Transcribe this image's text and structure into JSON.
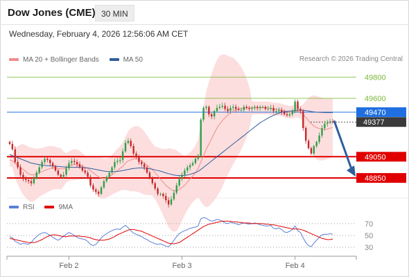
{
  "header": {
    "title": "Dow Jones (CME)",
    "interval": "30 MIN",
    "datetime": "Wednesday, February 4, 2026 12:56:06 AM CET"
  },
  "legend": {
    "items": [
      {
        "label": "MA 20 + Bollinger Bands",
        "color": "#f08c8c"
      },
      {
        "label": "MA 50",
        "color": "#2f5d9e"
      }
    ],
    "copyright": "Research © 2026 Trading Central"
  },
  "rsi_legend": {
    "items": [
      {
        "label": "RSI",
        "color": "#5b7fd6"
      },
      {
        "label": "9MA",
        "color": "#e00000"
      }
    ]
  },
  "colors": {
    "up": "#2e9e48",
    "down": "#c4282a",
    "support": "#e00000",
    "resistance": "#7cb83a",
    "current": "#3a3a3a",
    "pivot": "#1f6fe0",
    "band": "#fbd3d3",
    "ma20": "#f08c8c",
    "ma50": "#2f5d9e",
    "arrow": "#2f5d9e",
    "rsi": "#5b7fd6",
    "rsi_ma": "#e00000"
  },
  "chart_data": [
    {
      "type": "candlestick",
      "title": "Dow Jones (CME)",
      "ylim": [
        48680,
        49920
      ],
      "x_tick_labels": [
        "Feb 2",
        "Feb 3",
        "Feb 4"
      ],
      "levels": [
        {
          "value": 49800,
          "label": "49800",
          "role": "resistance"
        },
        {
          "value": 49600,
          "label": "49600",
          "role": "resistance"
        },
        {
          "value": 49470,
          "label": "49470",
          "role": "pivot"
        },
        {
          "value": 49377,
          "label": "49377",
          "role": "current"
        },
        {
          "value": 49050,
          "label": "49050",
          "role": "support"
        },
        {
          "value": 48850,
          "label": "48850",
          "role": "support"
        }
      ],
      "close_series": [
        49170,
        49120,
        49000,
        48950,
        48880,
        48840,
        48830,
        48820,
        48800,
        48850,
        48900,
        48950,
        49000,
        49030,
        49020,
        48990,
        48960,
        48920,
        48880,
        48860,
        48880,
        48940,
        48990,
        49010,
        49000,
        48980,
        48950,
        48920,
        48900,
        48860,
        48780,
        48740,
        48720,
        48700,
        48760,
        48820,
        48860,
        48900,
        48950,
        49000,
        49010,
        49020,
        49100,
        49180,
        49200,
        49150,
        49080,
        49050,
        49000,
        48980,
        48950,
        48900,
        48850,
        48800,
        48750,
        48700,
        48700,
        48680,
        48640,
        48600,
        48650,
        48710,
        48780,
        48840,
        48880,
        48920,
        48950,
        48970,
        48990,
        49030,
        49060,
        49400,
        49510,
        49520,
        49450,
        49430,
        49480,
        49510,
        49520,
        49530,
        49500,
        49480,
        49510,
        49520,
        49500,
        49490,
        49490,
        49520,
        49510,
        49500,
        49510,
        49520,
        49510,
        49520,
        49520,
        49500,
        49500,
        49510,
        49480,
        49480,
        49490,
        49470,
        49450,
        49440,
        49450,
        49480,
        49570,
        49500,
        49480,
        49320,
        49200,
        49130,
        49080,
        49150,
        49190,
        49250,
        49320,
        49360,
        49370,
        49380,
        49377
      ],
      "ma20_series": [
        49020,
        49010,
        48990,
        48970,
        48950,
        48930,
        48910,
        48890,
        48880,
        48880,
        48890,
        48900,
        48910,
        48920,
        48930,
        48940,
        48945,
        48945,
        48940,
        48935,
        48935,
        48945,
        48960,
        48970,
        48975,
        48975,
        48970,
        48960,
        48950,
        48940,
        48920,
        48900,
        48880,
        48860,
        48850,
        48845,
        48850,
        48860,
        48880,
        48900,
        48920,
        48940,
        48960,
        48990,
        49010,
        49020,
        49030,
        49030,
        49025,
        49010,
        48990,
        48970,
        48950,
        48930,
        48900,
        48870,
        48840,
        48810,
        48780,
        48760,
        48740,
        48730,
        48730,
        48740,
        48760,
        48780,
        48810,
        48840,
        48870,
        48900,
        48940,
        49000,
        49060,
        49120,
        49170,
        49220,
        49270,
        49320,
        49360,
        49390,
        49420,
        49440,
        49460,
        49480,
        49490,
        49500,
        49505,
        49510,
        49510,
        49510,
        49510,
        49510,
        49510,
        49510,
        49510,
        49510,
        49510,
        49505,
        49500,
        49500,
        49495,
        49490,
        49480,
        49475,
        49470,
        49470,
        49480,
        49480,
        49470,
        49450,
        49420,
        49390,
        49360,
        49340,
        49325,
        49315,
        49310,
        49310,
        49312,
        49318,
        49325
      ],
      "ma50_series": [
        49070,
        49060,
        49050,
        49040,
        49030,
        49020,
        49010,
        49000,
        48990,
        48985,
        48980,
        48975,
        48970,
        48968,
        48966,
        48964,
        48962,
        48960,
        48958,
        48956,
        48954,
        48952,
        48950,
        48950,
        48950,
        48950,
        48950,
        48948,
        48946,
        48944,
        48940,
        48935,
        48930,
        48925,
        48920,
        48915,
        48912,
        48910,
        48910,
        48910,
        48912,
        48915,
        48920,
        48925,
        48930,
        48935,
        48940,
        48942,
        48944,
        48944,
        48942,
        48940,
        48936,
        48932,
        48926,
        48920,
        48914,
        48906,
        48898,
        48890,
        48884,
        48878,
        48874,
        48872,
        48872,
        48874,
        48878,
        48884,
        48892,
        48900,
        48912,
        48930,
        48950,
        48970,
        48990,
        49010,
        49030,
        49050,
        49070,
        49090,
        49110,
        49130,
        49150,
        49170,
        49190,
        49210,
        49230,
        49250,
        49270,
        49290,
        49310,
        49330,
        49350,
        49370,
        49385,
        49400,
        49415,
        49428,
        49440,
        49450,
        49460,
        49468,
        49474,
        49478,
        49480,
        49482,
        49486,
        49490,
        49490,
        49488,
        49484,
        49480,
        49476,
        49472,
        49470,
        49468,
        49467,
        49466,
        49466,
        49466,
        49466
      ]
    },
    {
      "type": "line",
      "title": "RSI",
      "ylim": [
        15,
        85
      ],
      "y_tick_labels": [
        "70",
        "50",
        "30"
      ],
      "y_ticks": [
        70,
        50,
        30
      ],
      "series": [
        {
          "name": "RSI",
          "values": [
            48,
            46,
            40,
            38,
            35,
            37,
            36,
            35,
            38,
            44,
            48,
            52,
            54,
            55,
            53,
            50,
            47,
            44,
            42,
            45,
            49,
            52,
            55,
            53,
            50,
            47,
            45,
            44,
            43,
            40,
            35,
            33,
            35,
            40,
            46,
            50,
            53,
            56,
            58,
            60,
            61,
            60,
            64,
            67,
            63,
            58,
            54,
            52,
            50,
            48,
            45,
            43,
            40,
            38,
            36,
            35,
            36,
            34,
            32,
            31,
            36,
            42,
            48,
            53,
            56,
            58,
            60,
            62,
            63,
            64,
            66,
            78,
            80,
            79,
            76,
            74,
            75,
            77,
            76,
            74,
            71,
            70,
            72,
            71,
            70,
            68,
            70,
            71,
            70,
            69,
            70,
            71,
            70,
            68,
            67,
            66,
            66,
            67,
            62,
            61,
            63,
            60,
            56,
            55,
            57,
            60,
            66,
            58,
            55,
            46,
            38,
            33,
            31,
            37,
            42,
            47,
            51,
            52,
            52,
            53,
            52
          ]
        },
        {
          "name": "9MA",
          "values": [
            45,
            44,
            43,
            42,
            41,
            40,
            39,
            38,
            38,
            38,
            39,
            41,
            43,
            46,
            48,
            50,
            51,
            51,
            50,
            49,
            48,
            48,
            49,
            49,
            49,
            49,
            49,
            48,
            48,
            47,
            46,
            44,
            43,
            42,
            42,
            42,
            43,
            44,
            46,
            48,
            51,
            53,
            55,
            57,
            59,
            60,
            60,
            59,
            58,
            57,
            55,
            53,
            51,
            49,
            47,
            45,
            43,
            41,
            39,
            37,
            36,
            36,
            37,
            38,
            41,
            44,
            47,
            50,
            53,
            56,
            59,
            62,
            65,
            67,
            69,
            70,
            71,
            72,
            73,
            74,
            74,
            74,
            74,
            73,
            73,
            72,
            72,
            71,
            71,
            71,
            70,
            70,
            70,
            70,
            70,
            69,
            69,
            68,
            68,
            67,
            66,
            65,
            64,
            63,
            62,
            61,
            61,
            61,
            60,
            59,
            57,
            55,
            53,
            51,
            49,
            47,
            45,
            44,
            43,
            43,
            44
          ]
        }
      ]
    }
  ]
}
